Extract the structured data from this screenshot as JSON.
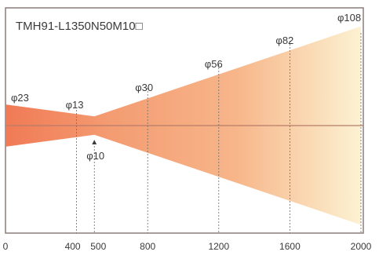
{
  "model": "TMH91-L1350N50M10",
  "model_suffix_symbol": "□",
  "diameter_labels": [
    {
      "text": "φ23",
      "at": 0
    },
    {
      "text": "φ13",
      "at": 400
    },
    {
      "text": "φ10",
      "at": 500
    },
    {
      "text": "φ30",
      "at": 800
    },
    {
      "text": "φ56",
      "at": 1200
    },
    {
      "text": "φ82",
      "at": 1600
    },
    {
      "text": "φ108",
      "at": 2000
    }
  ],
  "x_ticks": [
    "0",
    "400",
    "500",
    "800",
    "1200",
    "1600",
    "2000"
  ],
  "x_tick_values": [
    0,
    400,
    500,
    800,
    1200,
    1600,
    2000
  ],
  "focus_marker": {
    "symbol": "▲",
    "at": 500
  },
  "beam": {
    "x": [
      0,
      500,
      2000
    ],
    "diameter": [
      23,
      10,
      108
    ]
  },
  "x_range": [
    0,
    2000
  ],
  "colors": {
    "frame": "#8a7f7a",
    "beam_start": "#f07a55",
    "beam_mid": "#f7b68a",
    "beam_end": "#fcf2d2",
    "axis_line": "#b77c6a",
    "guide": "#6b6b6b"
  },
  "chart_data": {
    "type": "diagram",
    "title": "TMH91-L1350N50M10□",
    "x": [
      0,
      400,
      500,
      800,
      1200,
      1600,
      2000
    ],
    "diameter": [
      23,
      13,
      10,
      30,
      56,
      82,
      108
    ],
    "focus": 500,
    "xlim": [
      0,
      2000
    ]
  }
}
